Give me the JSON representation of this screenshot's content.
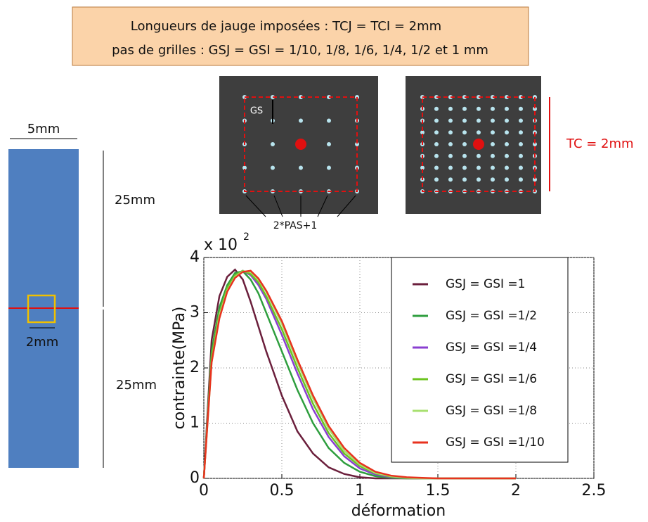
{
  "header": {
    "line1": "Longueurs de jauge imposées : TCJ = TCI = 2mm",
    "line2": "pas de grilles : GSJ = GSI = 1/10, 1/8, 1/6, 1/4, 1/2 et 1 mm"
  },
  "specimen": {
    "width_label": "5mm",
    "upper_label": "25mm",
    "lower_label": "25mm",
    "gauge_label": "2mm"
  },
  "images": {
    "gs_label": "GS",
    "points_label": "2*PAS+1",
    "tc_label": "TC = 2mm"
  },
  "chart_data": {
    "type": "line",
    "x_label": "déformation",
    "y_label": "contrainte(MPa)",
    "y_multiplier": {
      "base": "x 10",
      "exponent": "2"
    },
    "xlim": [
      0,
      2.5
    ],
    "ylim": [
      0,
      4
    ],
    "xticks": [
      0,
      0.5,
      1,
      1.5,
      2,
      2.5
    ],
    "yticks": [
      0,
      1,
      2,
      3,
      4
    ],
    "grid": true,
    "legend": "upper right",
    "x": [
      0,
      0.05,
      0.1,
      0.15,
      0.2,
      0.25,
      0.3,
      0.35,
      0.4,
      0.5,
      0.6,
      0.7,
      0.8,
      0.9,
      1.0,
      1.1,
      1.2,
      1.3,
      1.4,
      1.5,
      1.75,
      2.0
    ],
    "series": [
      {
        "name": "GSJ = GSI =1",
        "color": "#6b1f3c",
        "values": [
          0,
          2.5,
          3.3,
          3.65,
          3.78,
          3.6,
          3.2,
          2.75,
          2.3,
          1.5,
          0.85,
          0.45,
          0.2,
          0.08,
          0.02,
          0,
          0,
          0,
          0,
          0,
          0,
          0
        ]
      },
      {
        "name": "GSJ = GSI =1/2",
        "color": "#2e9e3e",
        "values": [
          0,
          2.3,
          3.1,
          3.5,
          3.72,
          3.75,
          3.6,
          3.35,
          3.0,
          2.3,
          1.6,
          1.0,
          0.55,
          0.28,
          0.12,
          0.04,
          0.01,
          0,
          0,
          0,
          0,
          0
        ]
      },
      {
        "name": "GSJ = GSI =1/4",
        "color": "#8a3fd1",
        "values": [
          0,
          2.2,
          3.0,
          3.45,
          3.68,
          3.76,
          3.68,
          3.5,
          3.25,
          2.6,
          1.9,
          1.25,
          0.75,
          0.4,
          0.18,
          0.07,
          0.02,
          0.01,
          0,
          0,
          0,
          0
        ]
      },
      {
        "name": "GSJ = GSI =1/6",
        "color": "#6cc420",
        "values": [
          0,
          2.2,
          3.0,
          3.45,
          3.68,
          3.76,
          3.7,
          3.55,
          3.3,
          2.7,
          2.0,
          1.35,
          0.82,
          0.45,
          0.22,
          0.09,
          0.03,
          0.01,
          0,
          0,
          0,
          0
        ]
      },
      {
        "name": "GSJ = GSI =1/8",
        "color": "#a8e070",
        "values": [
          0,
          2.1,
          2.95,
          3.4,
          3.65,
          3.75,
          3.74,
          3.6,
          3.38,
          2.8,
          2.1,
          1.45,
          0.9,
          0.5,
          0.25,
          0.1,
          0.04,
          0.01,
          0,
          0,
          0,
          0
        ]
      },
      {
        "name": "GSJ = GSI =1/10",
        "color": "#e8321e",
        "values": [
          0,
          2.1,
          2.9,
          3.38,
          3.63,
          3.74,
          3.76,
          3.62,
          3.4,
          2.85,
          2.15,
          1.5,
          0.95,
          0.55,
          0.28,
          0.12,
          0.05,
          0.02,
          0.01,
          0,
          0,
          0
        ]
      }
    ]
  }
}
